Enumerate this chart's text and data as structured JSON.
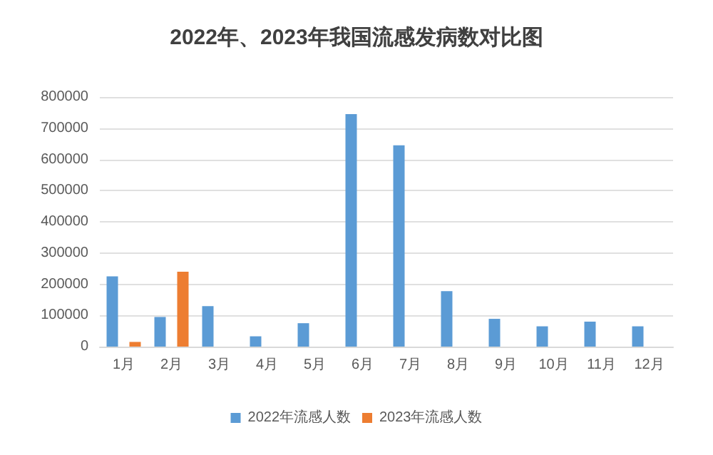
{
  "chart_data": {
    "type": "bar",
    "title": "2022年、2023年我国流感发病数对比图",
    "categories": [
      "1月",
      "2月",
      "3月",
      "4月",
      "5月",
      "6月",
      "7月",
      "8月",
      "9月",
      "10月",
      "11月",
      "12月"
    ],
    "series": [
      {
        "name": "2022年流感人数",
        "color": "#5b9bd5",
        "values": [
          225000,
          95000,
          130000,
          33000,
          75000,
          745000,
          645000,
          178000,
          89000,
          65000,
          80000,
          65000
        ]
      },
      {
        "name": "2023年流感人数",
        "color": "#ed7d31",
        "values": [
          15000,
          240000,
          null,
          null,
          null,
          null,
          null,
          null,
          null,
          null,
          null,
          null
        ]
      }
    ],
    "ylim": [
      0,
      800000
    ],
    "yticks": [
      0,
      100000,
      200000,
      300000,
      400000,
      500000,
      600000,
      700000,
      800000
    ],
    "grid": "y",
    "legend": "bottom"
  }
}
